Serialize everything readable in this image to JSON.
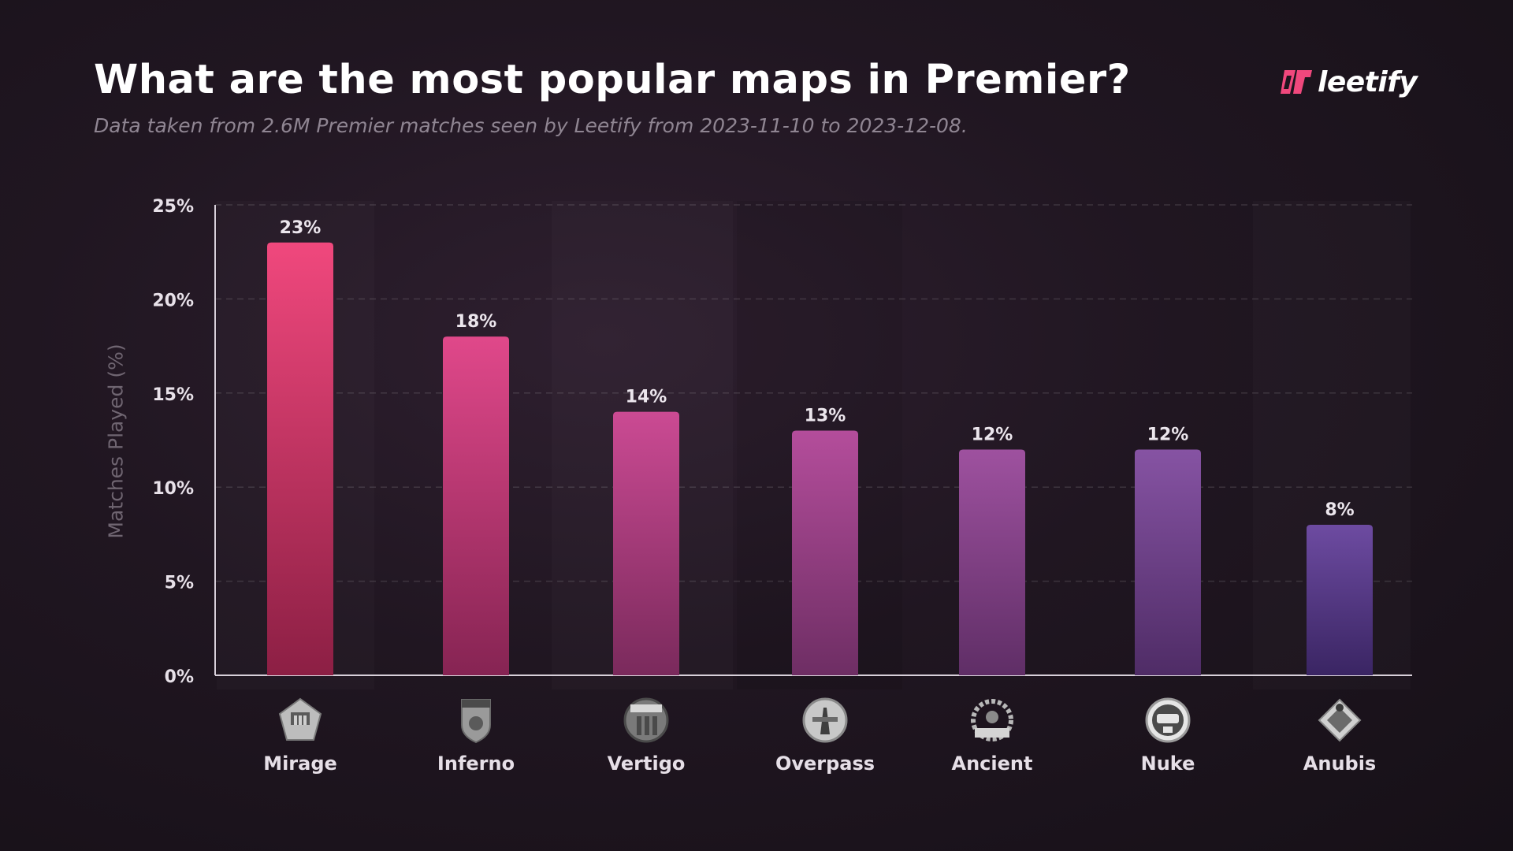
{
  "header": {
    "title": "What are the most popular maps in Premier?",
    "subtitle": "Data taken from 2.6M Premier matches seen by Leetify from 2023-11-10 to 2023-12-08."
  },
  "brand": {
    "name": "leetify",
    "accent": "#f0487d"
  },
  "chart_data": {
    "type": "bar",
    "title": "What are the most popular maps in Premier?",
    "subtitle": "Data taken from 2.6M Premier matches seen by Leetify from 2023-11-10 to 2023-12-08.",
    "xlabel": "",
    "ylabel": "Matches Played (%)",
    "ylim": [
      0,
      25
    ],
    "yticks": [
      "0%",
      "5%",
      "10%",
      "15%",
      "20%",
      "25%"
    ],
    "grid": true,
    "categories": [
      "Mirage",
      "Inferno",
      "Vertigo",
      "Overpass",
      "Ancient",
      "Nuke",
      "Anubis"
    ],
    "values": [
      23,
      18,
      14,
      13,
      12,
      12,
      8
    ],
    "data_labels": [
      "23%",
      "18%",
      "14%",
      "13%",
      "12%",
      "12%",
      "8%"
    ],
    "bar_colors_top": [
      "#f0487d",
      "#e0488a",
      "#cb4a93",
      "#b44d9b",
      "#9e519f",
      "#8653a3",
      "#6d4ba1"
    ],
    "bar_colors_bottom": [
      "#8c1f44",
      "#862453",
      "#7a2a5c",
      "#6e2e64",
      "#5f2e66",
      "#4f2c66",
      "#3a2563"
    ],
    "icons": [
      "mirage-icon",
      "inferno-icon",
      "vertigo-icon",
      "overpass-icon",
      "ancient-icon",
      "nuke-icon",
      "anubis-icon"
    ],
    "icon_labels": [
      "MIRAGE",
      "INFERNO",
      "VERTIGO",
      "OVERPASS",
      "ANCIENT",
      "NUKE",
      "ANUBIS"
    ]
  }
}
